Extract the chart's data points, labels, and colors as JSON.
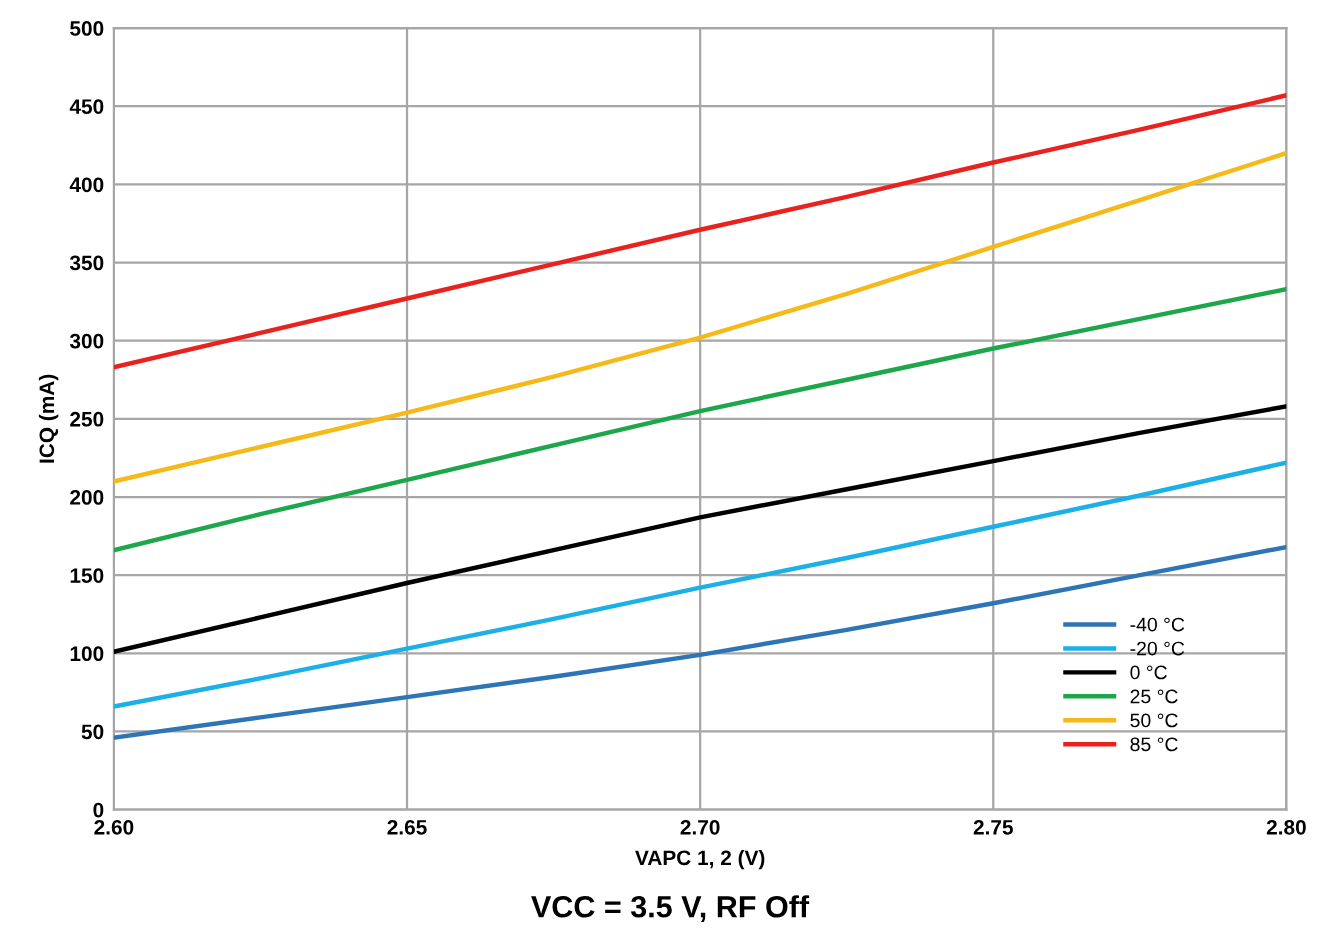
{
  "chart_data": {
    "type": "line",
    "title": "VCC = 3.5 V, RF Off",
    "xlabel": "VAPC 1, 2 (V)",
    "ylabel": "ICQ (mA)",
    "x": [
      2.6,
      2.625,
      2.65,
      2.675,
      2.7,
      2.725,
      2.75,
      2.775,
      2.8
    ],
    "series": [
      {
        "name": "-40 °C",
        "color": "#2e75b6",
        "values": [
          46,
          59,
          72,
          85,
          99,
          115,
          132,
          150,
          168
        ]
      },
      {
        "name": "-20 °C",
        "color": "#1cb0e6",
        "values": [
          66,
          84,
          103,
          122,
          142,
          161,
          181,
          201,
          222
        ]
      },
      {
        "name": "0 °C",
        "color": "#000000",
        "values": [
          101,
          123,
          145,
          166,
          187,
          205,
          223,
          241,
          258
        ]
      },
      {
        "name": "25 °C",
        "color": "#1ea64b",
        "values": [
          166,
          189,
          211,
          233,
          255,
          275,
          295,
          314,
          333
        ]
      },
      {
        "name": "50 °C",
        "color": "#f5b919",
        "values": [
          210,
          232,
          254,
          277,
          302,
          330,
          360,
          390,
          420
        ]
      },
      {
        "name": "85 °C",
        "color": "#e8231f",
        "values": [
          283,
          305,
          327,
          349,
          371,
          392,
          414,
          435,
          457
        ]
      }
    ],
    "xlim": [
      2.6,
      2.8
    ],
    "xticks": [
      {
        "value": 2.6,
        "label": "2.60"
      },
      {
        "value": 2.65,
        "label": "2.65"
      },
      {
        "value": 2.7,
        "label": "2.70"
      },
      {
        "value": 2.75,
        "label": "2.75"
      },
      {
        "value": 2.8,
        "label": "2.80"
      }
    ],
    "ylim": [
      0,
      500
    ],
    "yticks": [
      0,
      50,
      100,
      150,
      200,
      250,
      300,
      350,
      400,
      450,
      500
    ],
    "grid": true,
    "legend": "bottom right",
    "marker": "none",
    "line_style": "solid"
  }
}
